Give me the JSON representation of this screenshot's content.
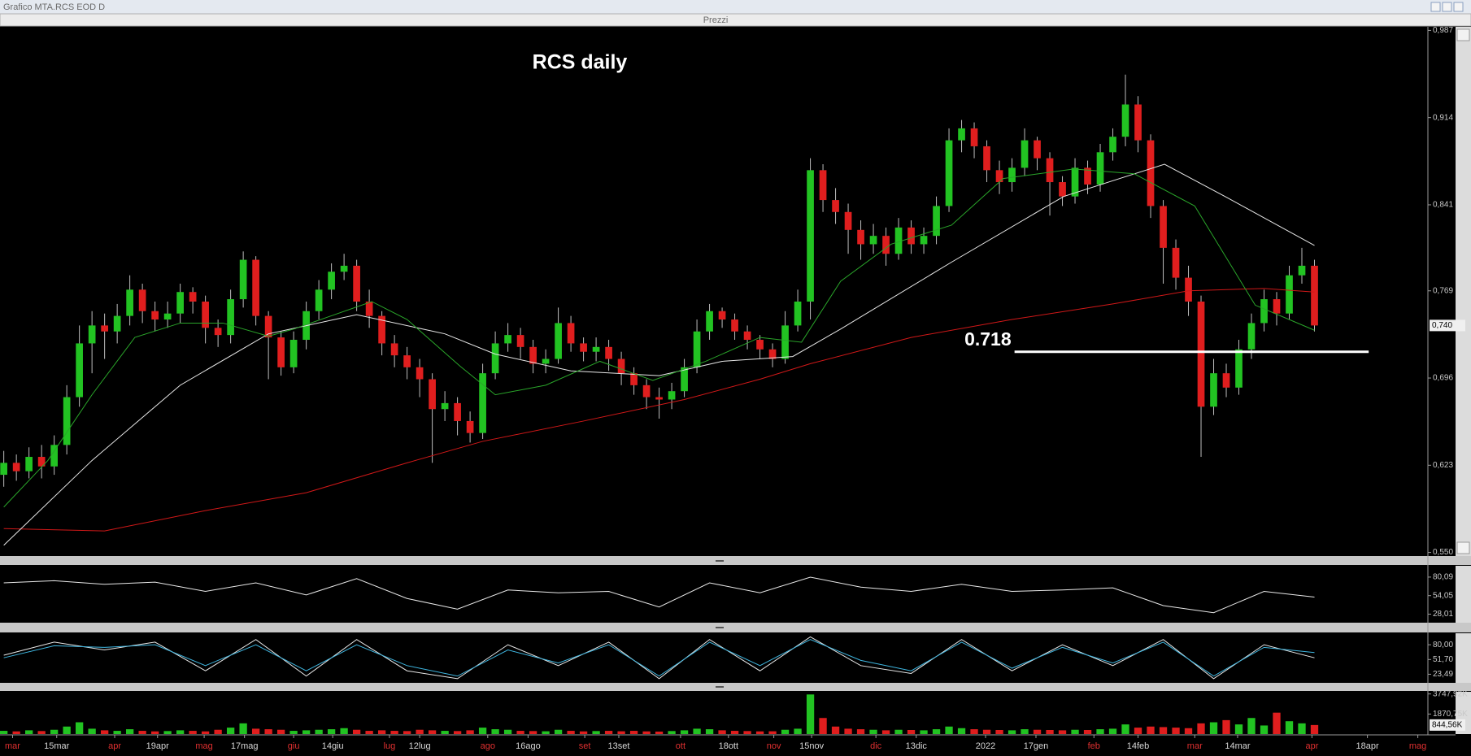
{
  "window": {
    "title": "Grafico MTA.RCS EOD D",
    "panel": "Prezzi"
  },
  "chart_data": [
    {
      "type": "candlestick",
      "title": "RCS daily",
      "up_color": "#22c322",
      "down_color": "#e01e1e",
      "wick_color": "#bdbdbd",
      "xlim": [
        -0.3,
        113
      ],
      "ylim": [
        0.547,
        0.99
      ],
      "yticks": [
        {
          "value": 0.987,
          "label": "0,987"
        },
        {
          "value": 0.914,
          "label": "0,914"
        },
        {
          "value": 0.841,
          "label": "0,841"
        },
        {
          "value": 0.769,
          "label": "0,769"
        },
        {
          "value": 0.696,
          "label": "0,696"
        },
        {
          "value": 0.623,
          "label": "0,623"
        },
        {
          "value": 0.55,
          "label": "0,550"
        }
      ],
      "last_value": {
        "value": 0.74,
        "label": "0,740"
      },
      "open": [
        0.615,
        0.625,
        0.618,
        0.63,
        0.622,
        0.64,
        0.68,
        0.725,
        0.74,
        0.735,
        0.748,
        0.77,
        0.752,
        0.745,
        0.75,
        0.768,
        0.76,
        0.738,
        0.732,
        0.762,
        0.795,
        0.748,
        0.73,
        0.705,
        0.728,
        0.752,
        0.77,
        0.785,
        0.79,
        0.76,
        0.748,
        0.725,
        0.715,
        0.705,
        0.695,
        0.67,
        0.675,
        0.66,
        0.65,
        0.7,
        0.725,
        0.732,
        0.722,
        0.708,
        0.712,
        0.742,
        0.725,
        0.718,
        0.722,
        0.712,
        0.7,
        0.69,
        0.68,
        0.678,
        0.685,
        0.705,
        0.735,
        0.752,
        0.745,
        0.735,
        0.728,
        0.72,
        0.712,
        0.74,
        0.76,
        0.87,
        0.845,
        0.835,
        0.82,
        0.808,
        0.815,
        0.8,
        0.822,
        0.808,
        0.815,
        0.84,
        0.895,
        0.905,
        0.89,
        0.87,
        0.86,
        0.872,
        0.895,
        0.88,
        0.86,
        0.848,
        0.872,
        0.858,
        0.885,
        0.898,
        0.925,
        0.895,
        0.84,
        0.805,
        0.78,
        0.76,
        0.672,
        0.7,
        0.688,
        0.72,
        0.742,
        0.762,
        0.75,
        0.782,
        0.79
      ],
      "high": [
        0.635,
        0.632,
        0.638,
        0.64,
        0.648,
        0.69,
        0.74,
        0.752,
        0.75,
        0.758,
        0.782,
        0.775,
        0.76,
        0.76,
        0.775,
        0.772,
        0.765,
        0.745,
        0.77,
        0.802,
        0.798,
        0.752,
        0.735,
        0.735,
        0.76,
        0.778,
        0.792,
        0.8,
        0.795,
        0.77,
        0.752,
        0.732,
        0.722,
        0.712,
        0.7,
        0.685,
        0.68,
        0.668,
        0.708,
        0.735,
        0.742,
        0.738,
        0.728,
        0.72,
        0.755,
        0.748,
        0.73,
        0.73,
        0.728,
        0.718,
        0.705,
        0.695,
        0.688,
        0.692,
        0.712,
        0.745,
        0.758,
        0.755,
        0.75,
        0.74,
        0.732,
        0.725,
        0.752,
        0.77,
        0.88,
        0.875,
        0.855,
        0.842,
        0.828,
        0.825,
        0.822,
        0.83,
        0.828,
        0.822,
        0.848,
        0.905,
        0.912,
        0.91,
        0.895,
        0.878,
        0.88,
        0.905,
        0.898,
        0.885,
        0.865,
        0.88,
        0.878,
        0.892,
        0.905,
        0.95,
        0.932,
        0.9,
        0.845,
        0.812,
        0.79,
        0.765,
        0.712,
        0.708,
        0.728,
        0.75,
        0.77,
        0.768,
        0.79,
        0.805,
        0.795
      ],
      "low": [
        0.605,
        0.61,
        0.612,
        0.612,
        0.615,
        0.632,
        0.672,
        0.7,
        0.712,
        0.725,
        0.74,
        0.742,
        0.735,
        0.738,
        0.742,
        0.75,
        0.725,
        0.722,
        0.725,
        0.755,
        0.74,
        0.695,
        0.698,
        0.7,
        0.72,
        0.745,
        0.762,
        0.778,
        0.752,
        0.738,
        0.715,
        0.705,
        0.695,
        0.68,
        0.625,
        0.66,
        0.648,
        0.642,
        0.645,
        0.695,
        0.718,
        0.712,
        0.7,
        0.7,
        0.708,
        0.718,
        0.71,
        0.71,
        0.702,
        0.69,
        0.682,
        0.67,
        0.662,
        0.67,
        0.68,
        0.7,
        0.728,
        0.738,
        0.728,
        0.72,
        0.712,
        0.705,
        0.708,
        0.735,
        0.745,
        0.835,
        0.825,
        0.8,
        0.795,
        0.8,
        0.79,
        0.795,
        0.8,
        0.8,
        0.808,
        0.835,
        0.885,
        0.88,
        0.86,
        0.85,
        0.852,
        0.865,
        0.87,
        0.832,
        0.84,
        0.842,
        0.85,
        0.852,
        0.878,
        0.89,
        0.885,
        0.83,
        0.775,
        0.77,
        0.748,
        0.63,
        0.665,
        0.68,
        0.682,
        0.712,
        0.735,
        0.74,
        0.745,
        0.775,
        0.735
      ],
      "close": [
        0.625,
        0.618,
        0.63,
        0.622,
        0.64,
        0.68,
        0.725,
        0.74,
        0.735,
        0.748,
        0.77,
        0.752,
        0.745,
        0.75,
        0.768,
        0.76,
        0.738,
        0.732,
        0.762,
        0.795,
        0.748,
        0.73,
        0.705,
        0.728,
        0.752,
        0.77,
        0.785,
        0.79,
        0.76,
        0.748,
        0.725,
        0.715,
        0.705,
        0.695,
        0.67,
        0.675,
        0.66,
        0.65,
        0.7,
        0.725,
        0.732,
        0.722,
        0.708,
        0.712,
        0.742,
        0.725,
        0.718,
        0.722,
        0.712,
        0.7,
        0.69,
        0.68,
        0.678,
        0.685,
        0.705,
        0.735,
        0.752,
        0.745,
        0.735,
        0.728,
        0.72,
        0.712,
        0.74,
        0.76,
        0.87,
        0.845,
        0.835,
        0.82,
        0.808,
        0.815,
        0.8,
        0.822,
        0.808,
        0.815,
        0.84,
        0.895,
        0.905,
        0.89,
        0.87,
        0.86,
        0.872,
        0.895,
        0.88,
        0.86,
        0.848,
        0.872,
        0.858,
        0.885,
        0.898,
        0.925,
        0.895,
        0.84,
        0.805,
        0.78,
        0.76,
        0.672,
        0.7,
        0.688,
        0.72,
        0.742,
        0.762,
        0.75,
        0.782,
        0.79,
        0.74
      ],
      "series": [
        {
          "color": "#d01818",
          "x": [
            0,
            8,
            16,
            24,
            32,
            38,
            46,
            54,
            60,
            64,
            72,
            80,
            88,
            94,
            100,
            104
          ],
          "values": [
            0.57,
            0.568,
            0.585,
            0.6,
            0.625,
            0.643,
            0.66,
            0.678,
            0.695,
            0.708,
            0.73,
            0.745,
            0.758,
            0.769,
            0.771,
            0.768
          ]
        },
        {
          "color": "#e8e8e8",
          "x": [
            0,
            7,
            14,
            21,
            28,
            35,
            39,
            45,
            52,
            57,
            62.6,
            66.4,
            75.2,
            84.1,
            92.1,
            96.9,
            104
          ],
          "values": [
            0.556,
            0.627,
            0.69,
            0.733,
            0.749,
            0.733,
            0.716,
            0.702,
            0.698,
            0.71,
            0.714,
            0.737,
            0.793,
            0.848,
            0.875,
            0.848,
            0.807
          ]
        },
        {
          "color": "#2aa52a",
          "x": [
            0,
            3.5,
            7,
            10.4,
            14,
            17.4,
            21,
            23,
            25.7,
            29.2,
            32,
            36.2,
            39,
            43,
            47.3,
            51.5,
            55.7,
            60,
            63.3,
            66.4,
            70.4,
            75.2,
            79.3,
            84.9,
            89.7,
            94.5,
            99.3,
            104
          ],
          "values": [
            0.588,
            0.627,
            0.682,
            0.73,
            0.742,
            0.742,
            0.731,
            0.737,
            0.747,
            0.76,
            0.745,
            0.706,
            0.682,
            0.69,
            0.71,
            0.694,
            0.71,
            0.73,
            0.726,
            0.777,
            0.808,
            0.824,
            0.863,
            0.871,
            0.867,
            0.84,
            0.757,
            0.736
          ]
        }
      ],
      "annotations": [
        {
          "value": 0.718,
          "label": "0.718",
          "x": [
            80.2,
            108.3
          ]
        }
      ]
    },
    {
      "type": "line",
      "xlim": [
        -0.3,
        113
      ],
      "ylim": [
        16,
        96
      ],
      "yticks": [
        {
          "value": 80.09,
          "label": "80,09"
        },
        {
          "value": 54.05,
          "label": "54,05"
        },
        {
          "value": 28.01,
          "label": "28,01"
        }
      ],
      "series": [
        {
          "color": "#e8e8e8",
          "x": [
            0,
            4,
            8,
            12,
            16,
            20,
            24,
            28,
            32,
            36,
            40,
            44,
            48,
            52,
            56,
            60,
            64,
            68,
            72,
            76,
            80,
            84,
            88,
            92,
            96,
            100,
            104
          ],
          "values": [
            72,
            75,
            70,
            73,
            60,
            72,
            55,
            78,
            50,
            35,
            62,
            58,
            60,
            38,
            72,
            58,
            80,
            66,
            60,
            70,
            60,
            62,
            65,
            40,
            30,
            60,
            52
          ]
        }
      ]
    },
    {
      "type": "line",
      "xlim": [
        -0.3,
        113
      ],
      "ylim": [
        7,
        102
      ],
      "yticks": [
        {
          "value": 80,
          "label": "80,00"
        },
        {
          "value": 51.7,
          "label": "51,70"
        },
        {
          "value": 23.49,
          "label": "23,49"
        }
      ],
      "series": [
        {
          "color": "#e8e8e8",
          "x": [
            0,
            4,
            8,
            12,
            16,
            20,
            24,
            28,
            32,
            36,
            40,
            44,
            48,
            52,
            56,
            60,
            64,
            68,
            72,
            76,
            80,
            84,
            88,
            92,
            96,
            100,
            104
          ],
          "values": [
            60,
            85,
            70,
            85,
            30,
            90,
            20,
            90,
            30,
            15,
            80,
            40,
            85,
            15,
            90,
            30,
            95,
            40,
            25,
            90,
            30,
            80,
            40,
            90,
            15,
            80,
            55
          ]
        },
        {
          "color": "#3fb6e0",
          "x": [
            0,
            4,
            8,
            12,
            16,
            20,
            24,
            28,
            32,
            36,
            40,
            44,
            48,
            52,
            56,
            60,
            64,
            68,
            72,
            76,
            80,
            84,
            88,
            92,
            96,
            100,
            104
          ],
          "values": [
            55,
            78,
            75,
            80,
            40,
            80,
            30,
            80,
            40,
            20,
            70,
            45,
            80,
            20,
            85,
            40,
            90,
            50,
            30,
            85,
            35,
            75,
            45,
            85,
            20,
            75,
            65
          ]
        }
      ]
    },
    {
      "type": "bar",
      "xlim": [
        -0.3,
        113
      ],
      "ylim": [
        0,
        3950
      ],
      "up_color": "#22c322",
      "down_color": "#e01e1e",
      "yticks": [
        {
          "value": 3747.92,
          "label": "3747,92K"
        },
        {
          "value": 1870.75,
          "label": "1870,75K"
        }
      ],
      "last_value": {
        "value": 844.56,
        "label": "844,56K"
      },
      "values": [
        300,
        250,
        350,
        280,
        400,
        700,
        1100,
        500,
        350,
        300,
        450,
        300,
        250,
        280,
        350,
        300,
        250,
        400,
        600,
        1000,
        500,
        450,
        400,
        300,
        350,
        400,
        450,
        550,
        400,
        300,
        350,
        300,
        280,
        400,
        350,
        300,
        280,
        350,
        600,
        450,
        400,
        300,
        280,
        260,
        400,
        300,
        250,
        280,
        300,
        260,
        300,
        250,
        230,
        280,
        350,
        500,
        450,
        350,
        300,
        280,
        250,
        260,
        400,
        500,
        3700,
        1500,
        700,
        500,
        450,
        400,
        350,
        400,
        380,
        350,
        450,
        700,
        550,
        450,
        400,
        380,
        350,
        450,
        400,
        380,
        350,
        400,
        380,
        450,
        500,
        900,
        600,
        700,
        650,
        600,
        550,
        1000,
        1100,
        1300,
        900,
        1500,
        800,
        2000,
        1200,
        1000,
        844.56
      ],
      "xticks": [
        {
          "value": 0.7,
          "label": "mar"
        },
        {
          "value": 4.2,
          "label": "15mar"
        },
        {
          "value": 8.8,
          "label": "apr"
        },
        {
          "value": 12.2,
          "label": "19apr"
        },
        {
          "value": 15.9,
          "label": "mag"
        },
        {
          "value": 19.1,
          "label": "17mag"
        },
        {
          "value": 23,
          "label": "giu"
        },
        {
          "value": 26.1,
          "label": "14giu"
        },
        {
          "value": 30.6,
          "label": "lug"
        },
        {
          "value": 33,
          "label": "12lug"
        },
        {
          "value": 38.4,
          "label": "ago"
        },
        {
          "value": 41.6,
          "label": "16ago"
        },
        {
          "value": 46.1,
          "label": "set"
        },
        {
          "value": 48.8,
          "label": "13set"
        },
        {
          "value": 53.7,
          "label": "ott"
        },
        {
          "value": 57.5,
          "label": "18ott"
        },
        {
          "value": 61.1,
          "label": "nov"
        },
        {
          "value": 64.1,
          "label": "15nov"
        },
        {
          "value": 69.2,
          "label": "dic"
        },
        {
          "value": 72.4,
          "label": "13dic"
        },
        {
          "value": 77.9,
          "label": "2022"
        },
        {
          "value": 81.9,
          "label": "17gen"
        },
        {
          "value": 86.5,
          "label": "feb"
        },
        {
          "value": 90,
          "label": "14feb"
        },
        {
          "value": 94.5,
          "label": "mar"
        },
        {
          "value": 97.9,
          "label": "14mar"
        },
        {
          "value": 103.8,
          "label": "apr"
        },
        {
          "value": 108.2,
          "label": "18apr"
        },
        {
          "value": 112.2,
          "label": "mag"
        }
      ],
      "xtick_month_color": "#e03030",
      "xtick_day_color": "#d8d8d8"
    }
  ]
}
